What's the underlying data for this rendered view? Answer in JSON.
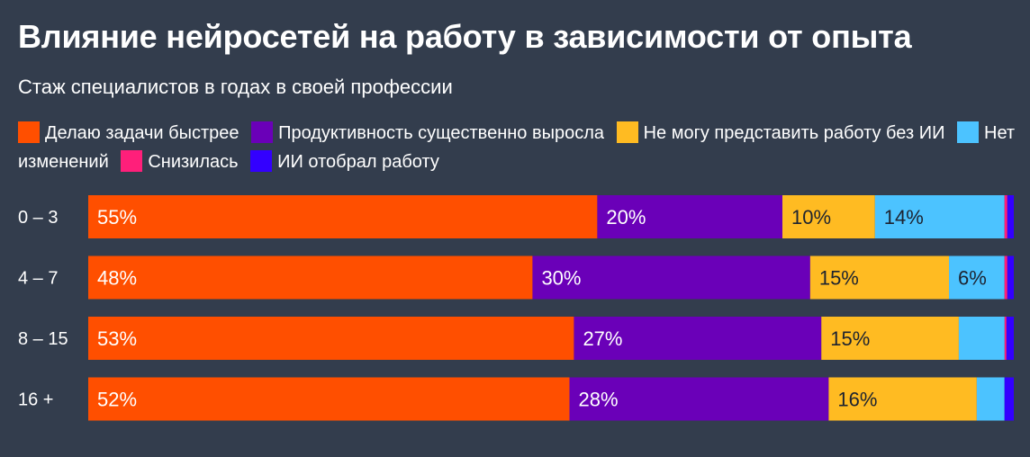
{
  "chart_data": {
    "type": "bar",
    "orientation": "horizontal",
    "stacked": true,
    "title": "Влияние нейросетей на работу в зависимости от опыта",
    "subtitle": "Стаж специалистов в годах в своей профессии",
    "categories": [
      "0 – 3",
      "4 – 7",
      "8 – 15",
      "16 +"
    ],
    "series": [
      {
        "name": "Делаю задачи быстрее",
        "color": "#ff4f00",
        "values": [
          55,
          48,
          53,
          52
        ],
        "labels": [
          "55%",
          "48%",
          "53%",
          "52%"
        ]
      },
      {
        "name": "Продуктивность существенно выросла",
        "color": "#6a00b8",
        "values": [
          20,
          30,
          27,
          28
        ],
        "labels": [
          "20%",
          "30%",
          "27%",
          "28%"
        ]
      },
      {
        "name": "Не могу представить работу без ИИ",
        "color": "#ffbb22",
        "values": [
          10,
          15,
          15,
          16
        ],
        "labels": [
          "10%",
          "15%",
          "15%",
          "16%"
        ]
      },
      {
        "name": "Нет изменений",
        "color": "#4cc3ff",
        "values": [
          14,
          6,
          5,
          3
        ],
        "labels": [
          "14%",
          "6%",
          "",
          ""
        ]
      },
      {
        "name": "Снизилась",
        "color": "#ff1f7a",
        "values": [
          0.3,
          0.3,
          0.2,
          0
        ],
        "labels": [
          "",
          "",
          "",
          ""
        ]
      },
      {
        "name": "ИИ отобрал работу",
        "color": "#3300ff",
        "values": [
          0.7,
          0.7,
          0.8,
          1
        ],
        "labels": [
          "",
          "",
          "",
          ""
        ]
      }
    ],
    "xlim": [
      0,
      100
    ],
    "legend_position": "top",
    "grid": false
  }
}
